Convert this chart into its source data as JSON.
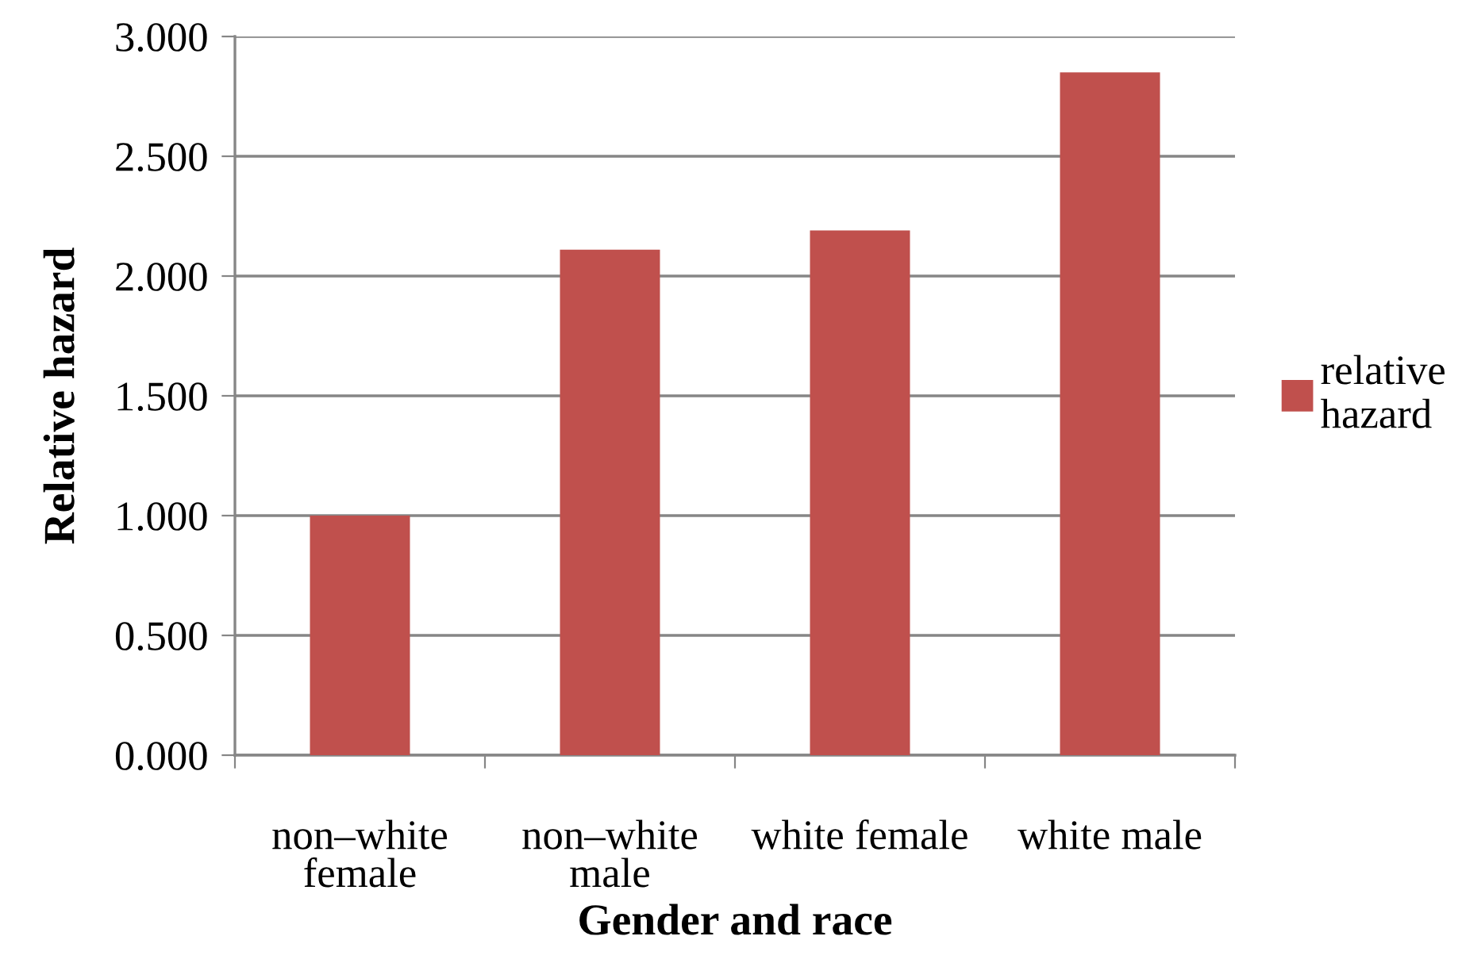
{
  "chart_data": {
    "type": "bar",
    "xlabel": "Gender and race",
    "ylabel": "Relative hazard",
    "categories": [
      "non–white female",
      "non–white male",
      "white female",
      "white male"
    ],
    "series": [
      {
        "name": "relative hazard",
        "color": "#c0504d",
        "values": [
          1.0,
          2.11,
          2.19,
          2.85
        ]
      }
    ],
    "ylim": [
      0,
      3
    ],
    "yticks": [
      {
        "value": 0,
        "label": "0.000"
      },
      {
        "value": 0.5,
        "label": "0.500"
      },
      {
        "value": 1,
        "label": "1.000"
      },
      {
        "value": 1.5,
        "label": "1.500"
      },
      {
        "value": 2,
        "label": "2.000"
      },
      {
        "value": 2.5,
        "label": "2.500"
      },
      {
        "value": 3,
        "label": "3.000"
      }
    ],
    "grid": "y",
    "legend": "right"
  }
}
